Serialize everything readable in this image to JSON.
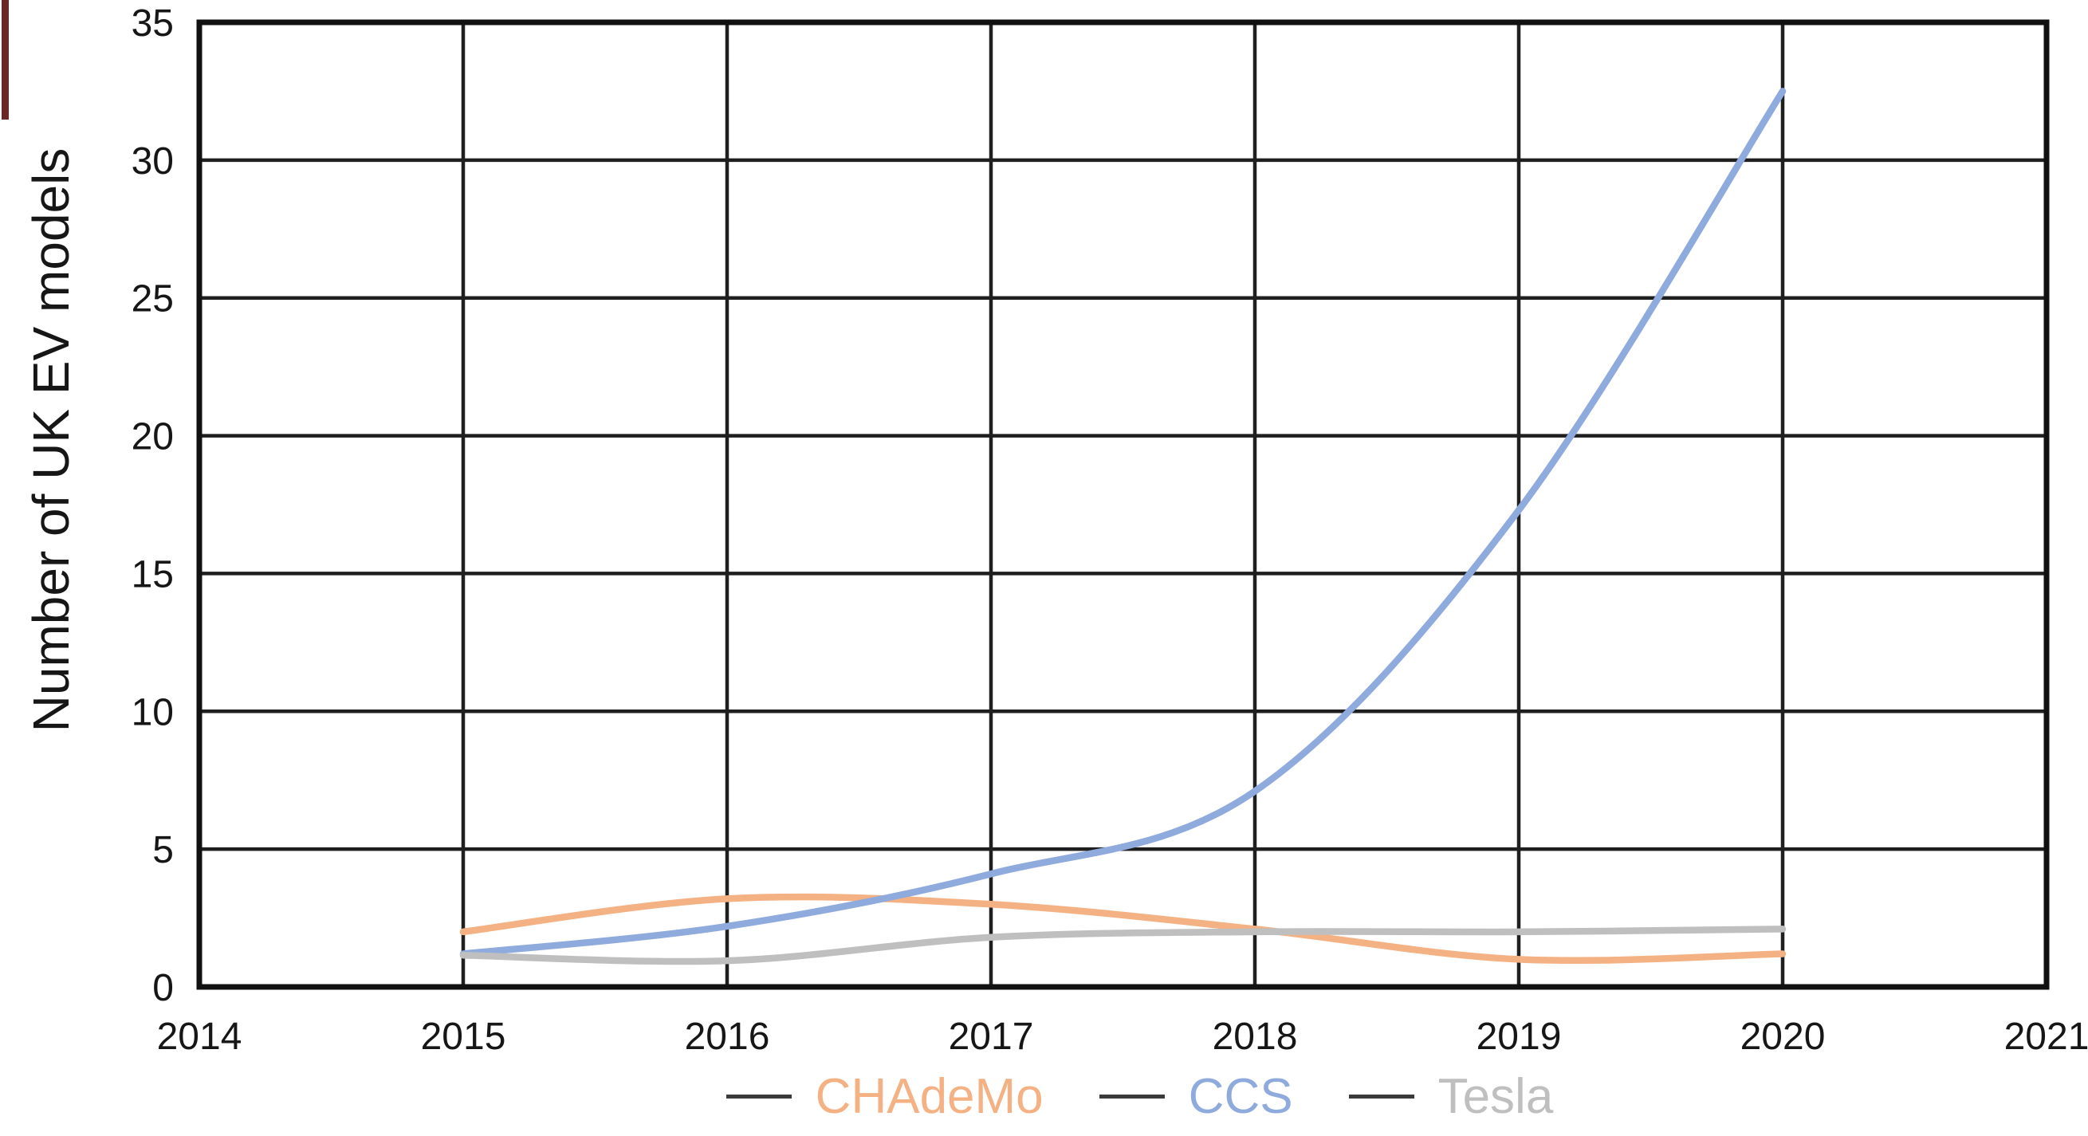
{
  "chart_data": {
    "type": "line",
    "title": "",
    "xlabel": "",
    "ylabel": "Number of UK EV models",
    "xlim": [
      2014,
      2021
    ],
    "ylim": [
      0,
      35
    ],
    "x_ticks": [
      "2014",
      "2015",
      "2016",
      "2017",
      "2018",
      "2019",
      "2020",
      "2021"
    ],
    "y_ticks": [
      0,
      5,
      10,
      15,
      20,
      25,
      30,
      35
    ],
    "grid": true,
    "legend_position": "bottom",
    "axis_color": "#111111",
    "grid_color": "#1f1f1f",
    "tick_color": "#161616",
    "legend_dash_color": "#3a3a3a",
    "series": [
      {
        "name": "CHAdeMo",
        "color": "#F4B183",
        "x": [
          2015,
          2016,
          2017,
          2018,
          2019,
          2020
        ],
        "values": [
          2,
          3.2,
          3,
          2.1,
          1,
          1.2
        ]
      },
      {
        "name": "CCS",
        "color": "#8FAADC",
        "x": [
          2015,
          2016,
          2017,
          2018,
          2019,
          2020
        ],
        "values": [
          1.2,
          2.2,
          4.1,
          7.1,
          17.3,
          32.5
        ]
      },
      {
        "name": "Tesla",
        "color": "#BFBFBF",
        "x": [
          2015,
          2016,
          2017,
          2018,
          2019,
          2020
        ],
        "values": [
          1.15,
          0.95,
          1.8,
          2,
          2,
          2.1
        ]
      }
    ]
  }
}
